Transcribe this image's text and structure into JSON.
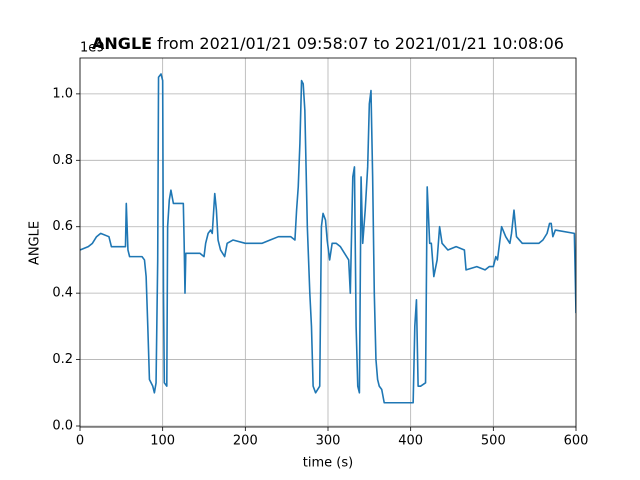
{
  "chart_data": {
    "type": "line",
    "title_bold": "ANGLE",
    "title": "from 2021/01/21 09:58:07 to 2021/01/21 10:08:06",
    "y_offset_label": "1e9",
    "xlabel": "time (s)",
    "ylabel": "ANGLE",
    "grid": true,
    "xlim": [
      0,
      600
    ],
    "xticks": [
      0,
      100,
      200,
      300,
      400,
      500,
      600
    ],
    "ylim": [
      -0.003,
      1.108
    ],
    "yticks": [
      {
        "value": 0,
        "label": "0.0"
      },
      {
        "value": 0.2,
        "label": "0.2"
      },
      {
        "value": 0.4,
        "label": "0.4"
      },
      {
        "value": 0.6,
        "label": "0.6"
      },
      {
        "value": 0.8,
        "label": "0.8"
      },
      {
        "value": 1,
        "label": "1.0"
      }
    ],
    "series": [
      {
        "name": "ANGLE",
        "color": "#1f77b4",
        "x": [
          0,
          10,
          15,
          20,
          25,
          35,
          38,
          50,
          55,
          56,
          58,
          60,
          75,
          78,
          80,
          82,
          84,
          88,
          90,
          92,
          94,
          95,
          98,
          100,
          101,
          102,
          105,
          106,
          108,
          110,
          113,
          125,
          126,
          127,
          128,
          135,
          145,
          150,
          152,
          155,
          158,
          160,
          163,
          165,
          167,
          170,
          175,
          178,
          185,
          200,
          220,
          230,
          240,
          255,
          260,
          262,
          264,
          266,
          268,
          270,
          272,
          275,
          278,
          280,
          282,
          285,
          290,
          292,
          294,
          297,
          299,
          302,
          305,
          310,
          315,
          320,
          325,
          327,
          328,
          330,
          332,
          334,
          336,
          338,
          340,
          342,
          345,
          348,
          350,
          352,
          354,
          356,
          358,
          360,
          362,
          365,
          368,
          375,
          385,
          395,
          403,
          405,
          407,
          409,
          412,
          418,
          420,
          423,
          425,
          428,
          432,
          435,
          438,
          445,
          455,
          465,
          467,
          480,
          490,
          495,
          500,
          503,
          505,
          510,
          515,
          520,
          522,
          525,
          528,
          535,
          545,
          555,
          560,
          565,
          568,
          570,
          572,
          575,
          598,
          600
        ],
        "values": [
          0.53,
          0.54,
          0.55,
          0.57,
          0.58,
          0.57,
          0.54,
          0.54,
          0.54,
          0.67,
          0.53,
          0.51,
          0.51,
          0.5,
          0.45,
          0.3,
          0.14,
          0.12,
          0.1,
          0.13,
          0.5,
          1.05,
          1.06,
          1.04,
          0.4,
          0.13,
          0.12,
          0.6,
          0.68,
          0.71,
          0.67,
          0.67,
          0.55,
          0.4,
          0.52,
          0.52,
          0.52,
          0.51,
          0.55,
          0.58,
          0.59,
          0.58,
          0.7,
          0.65,
          0.56,
          0.53,
          0.51,
          0.55,
          0.56,
          0.55,
          0.55,
          0.56,
          0.57,
          0.57,
          0.56,
          0.65,
          0.72,
          0.85,
          1.04,
          1.03,
          0.95,
          0.6,
          0.4,
          0.3,
          0.12,
          0.1,
          0.12,
          0.6,
          0.64,
          0.62,
          0.56,
          0.5,
          0.55,
          0.55,
          0.54,
          0.52,
          0.5,
          0.4,
          0.52,
          0.75,
          0.78,
          0.3,
          0.12,
          0.1,
          0.75,
          0.55,
          0.65,
          0.78,
          0.97,
          1.01,
          0.75,
          0.4,
          0.2,
          0.14,
          0.12,
          0.11,
          0.07,
          0.07,
          0.07,
          0.07,
          0.07,
          0.3,
          0.38,
          0.12,
          0.12,
          0.13,
          0.72,
          0.55,
          0.55,
          0.45,
          0.5,
          0.6,
          0.55,
          0.53,
          0.54,
          0.53,
          0.47,
          0.48,
          0.47,
          0.48,
          0.48,
          0.51,
          0.5,
          0.6,
          0.57,
          0.55,
          0.58,
          0.65,
          0.57,
          0.55,
          0.55,
          0.55,
          0.56,
          0.58,
          0.61,
          0.61,
          0.57,
          0.59,
          0.58,
          0.34
        ]
      }
    ]
  }
}
